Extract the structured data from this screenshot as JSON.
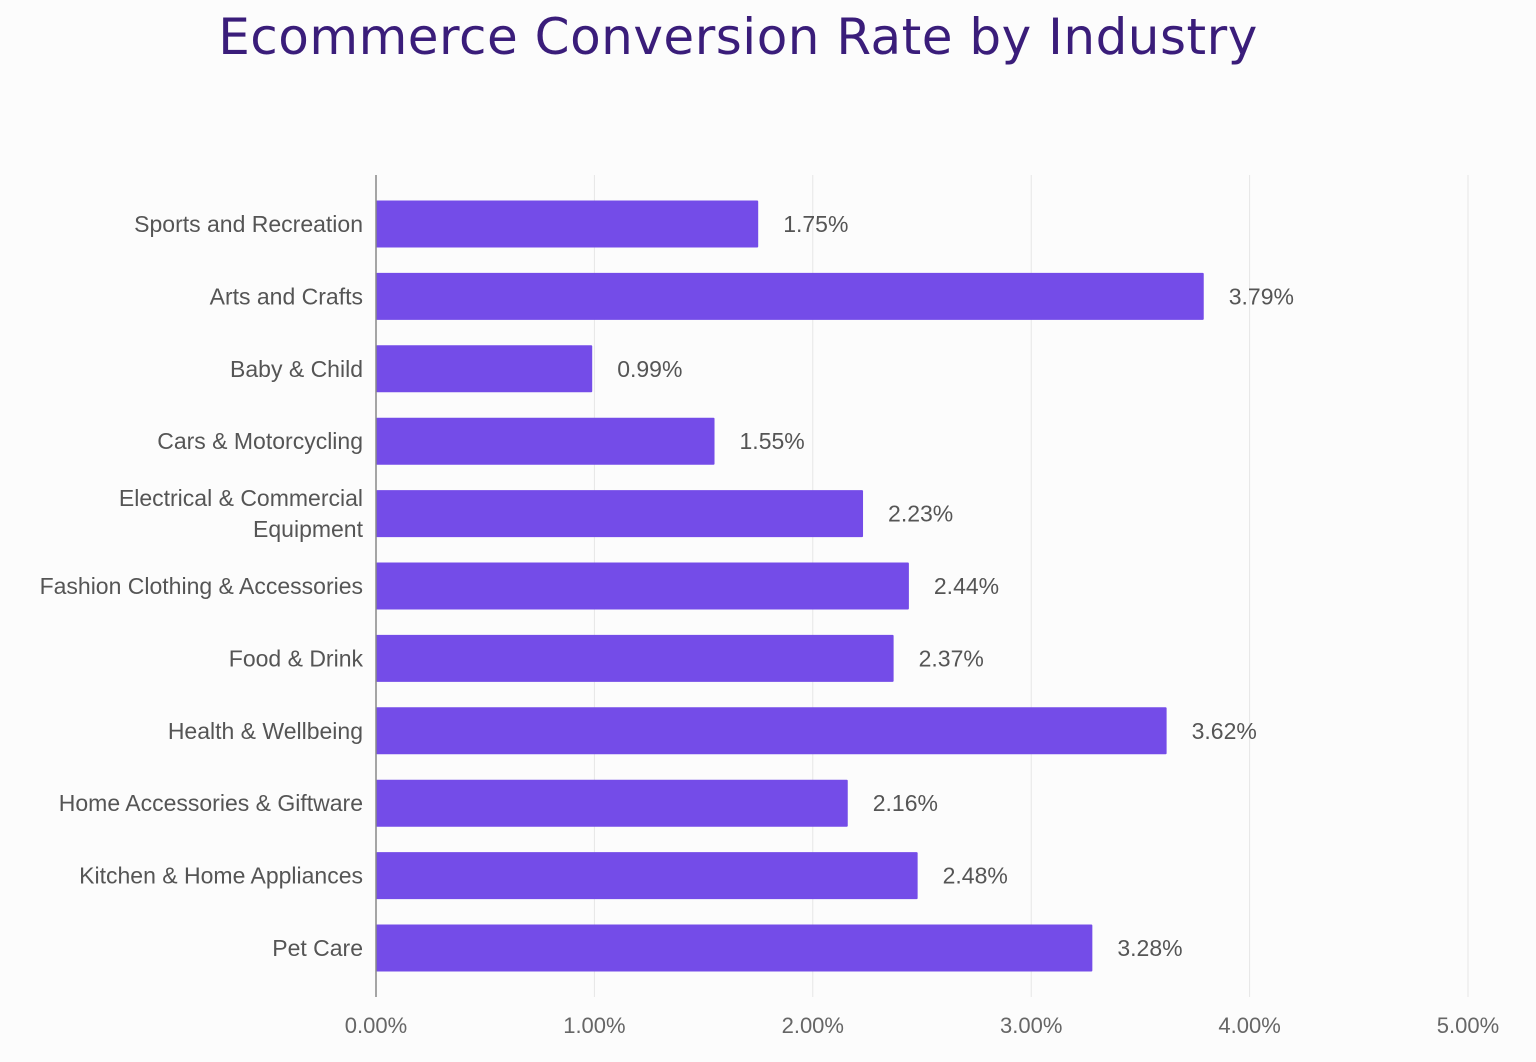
{
  "chart_data": {
    "type": "bar",
    "orientation": "horizontal",
    "title": "Ecommerce Conversion Rate by Industry",
    "categories": [
      "Sports and Recreation",
      "Arts and Crafts",
      "Baby & Child",
      "Cars & Motorcycling",
      "Electrical & Commercial\nEquipment",
      "Fashion Clothing & Accessories",
      "Food & Drink",
      "Health & Wellbeing",
      "Home Accessories & Giftware",
      "Kitchen & Home Appliances",
      "Pet Care"
    ],
    "values": [
      1.75,
      3.79,
      0.99,
      1.55,
      2.23,
      2.44,
      2.37,
      3.62,
      2.16,
      2.48,
      3.28
    ],
    "data_labels": [
      "1.75%",
      "3.79%",
      "0.99%",
      "1.55%",
      "2.23%",
      "2.44%",
      "2.37%",
      "3.62%",
      "2.16%",
      "2.48%",
      "3.28%"
    ],
    "xlim": [
      0,
      5
    ],
    "xticks": [
      0,
      1,
      2,
      3,
      4,
      5
    ],
    "xtick_labels": [
      "0.00%",
      "1.00%",
      "2.00%",
      "3.00%",
      "4.00%",
      "5.00%"
    ],
    "xlabel": "",
    "ylabel": "",
    "grid": "vertical",
    "legend": "none",
    "colors": {
      "bar": "#744ce8",
      "title": "#3a1d7a",
      "grid": "#e6e6e6",
      "axis": "#888888"
    }
  }
}
